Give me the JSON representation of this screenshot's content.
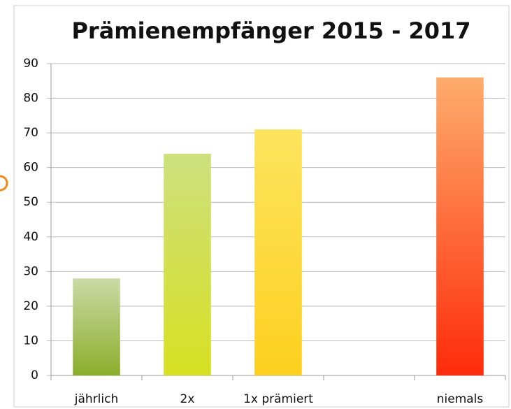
{
  "chart_data": {
    "type": "bar",
    "title": "Prämienempfänger 2015 - 2017",
    "categories": [
      "jährlich",
      "2x",
      "1x prämiert",
      null,
      "niemals"
    ],
    "values": [
      28,
      64,
      71,
      null,
      86
    ],
    "colors": [
      [
        "#ccdaa6",
        "#8bae2b"
      ],
      [
        "#cde07e",
        "#d7e021"
      ],
      [
        "#fde45e",
        "#fdd01f"
      ],
      null,
      [
        "#fdac6c",
        "#fe2b0a"
      ]
    ],
    "ylim": [
      0,
      90
    ],
    "yticks": [
      0,
      10,
      20,
      30,
      40,
      50,
      60,
      70,
      80,
      90
    ],
    "grid": true
  }
}
